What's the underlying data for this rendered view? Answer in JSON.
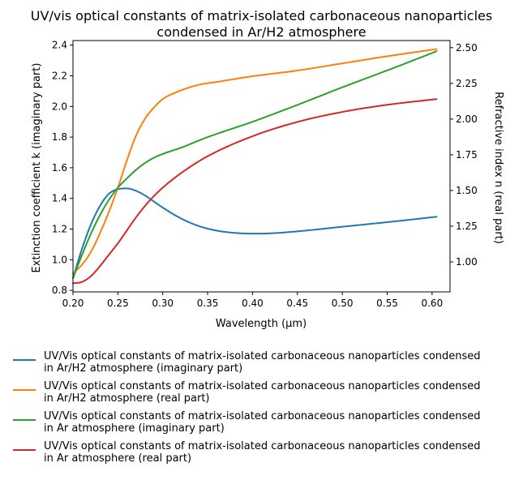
{
  "chart_data": {
    "type": "line",
    "title_line1": "UV/vis optical constants of matrix-isolated carbonaceous nanoparticles",
    "title_line2": "condensed in Ar/H2 atmosphere",
    "xlabel": "Wavelength (μm)",
    "ylabel_left": "Extinction coefficient k (imaginary part)",
    "ylabel_right": "Refractive index n (real part)",
    "xlim": [
      0.2,
      0.62
    ],
    "ylim_left": [
      0.79,
      2.43
    ],
    "ylim_right": [
      0.79,
      2.55
    ],
    "xticks": [
      "0.20",
      "0.25",
      "0.30",
      "0.35",
      "0.40",
      "0.45",
      "0.50",
      "0.55",
      "0.60"
    ],
    "yticks_left": [
      "0.8",
      "1.0",
      "1.2",
      "1.4",
      "1.6",
      "1.8",
      "2.0",
      "2.2",
      "2.4"
    ],
    "yticks_right": [
      "1.00",
      "1.25",
      "1.50",
      "1.75",
      "2.00",
      "2.25",
      "2.50"
    ],
    "grid": false,
    "legend_position": "below",
    "series": [
      {
        "name": "UV/Vis optical constants of matrix-isolated carbonaceous nanoparticles condensed in Ar/H2 atmosphere (imaginary part)",
        "name_line1": "UV/Vis optical constants of matrix-isolated carbonaceous nanoparticles condensed",
        "name_line2": "in Ar/H2 atmosphere (imaginary part)",
        "color": "#1f77b4",
        "axis": "left",
        "x": [
          0.2,
          0.21,
          0.22,
          0.23,
          0.24,
          0.25,
          0.26,
          0.27,
          0.28,
          0.29,
          0.3,
          0.32,
          0.34,
          0.36,
          0.38,
          0.4,
          0.42,
          0.45,
          0.5,
          0.55,
          0.605
        ],
        "y": [
          0.88,
          1.07,
          1.23,
          1.35,
          1.43,
          1.46,
          1.465,
          1.45,
          1.42,
          1.38,
          1.34,
          1.27,
          1.22,
          1.19,
          1.175,
          1.17,
          1.172,
          1.185,
          1.215,
          1.245,
          1.28
        ]
      },
      {
        "name": "UV/Vis optical constants of matrix-isolated carbonaceous nanoparticles condensed in Ar/H2 atmosphere (real part)",
        "name_line1": "UV/Vis optical constants of matrix-isolated carbonaceous nanoparticles condensed",
        "name_line2": "in Ar/H2 atmosphere (real part)",
        "color": "#ff7f0e",
        "axis": "right",
        "x": [
          0.2,
          0.21,
          0.22,
          0.23,
          0.24,
          0.25,
          0.26,
          0.27,
          0.28,
          0.29,
          0.3,
          0.32,
          0.34,
          0.36,
          0.4,
          0.45,
          0.5,
          0.55,
          0.605
        ],
        "y": [
          0.92,
          0.98,
          1.07,
          1.2,
          1.35,
          1.52,
          1.71,
          1.88,
          2.0,
          2.08,
          2.14,
          2.2,
          2.24,
          2.26,
          2.3,
          2.34,
          2.39,
          2.44,
          2.49
        ]
      },
      {
        "name": "UV/Vis optical constants of matrix-isolated carbonaceous nanoparticles condensed in Ar atmosphere (imaginary part)",
        "name_line1": "UV/Vis optical constants of matrix-isolated carbonaceous nanoparticles condensed",
        "name_line2": "in Ar atmosphere (imaginary part)",
        "color": "#2ca02c",
        "axis": "left",
        "x": [
          0.2,
          0.21,
          0.22,
          0.23,
          0.24,
          0.25,
          0.26,
          0.27,
          0.28,
          0.29,
          0.3,
          0.32,
          0.35,
          0.4,
          0.45,
          0.5,
          0.55,
          0.605
        ],
        "y": [
          0.88,
          1.03,
          1.17,
          1.29,
          1.39,
          1.47,
          1.53,
          1.585,
          1.63,
          1.665,
          1.69,
          1.73,
          1.8,
          1.9,
          2.01,
          2.125,
          2.235,
          2.36
        ]
      },
      {
        "name": "UV/Vis optical constants of matrix-isolated carbonaceous nanoparticles condensed in Ar atmosphere (real part)",
        "name_line1": "UV/Vis optical constants of matrix-isolated carbonaceous nanoparticles condensed",
        "name_line2": "in Ar atmosphere (real part)",
        "color": "#d62728",
        "axis": "right",
        "x": [
          0.2,
          0.21,
          0.22,
          0.23,
          0.24,
          0.25,
          0.26,
          0.27,
          0.28,
          0.29,
          0.3,
          0.32,
          0.35,
          0.4,
          0.45,
          0.5,
          0.55,
          0.605
        ],
        "y": [
          0.85,
          0.86,
          0.9,
          0.97,
          1.05,
          1.13,
          1.22,
          1.31,
          1.39,
          1.46,
          1.52,
          1.62,
          1.74,
          1.88,
          1.98,
          2.05,
          2.1,
          2.14
        ]
      }
    ]
  }
}
